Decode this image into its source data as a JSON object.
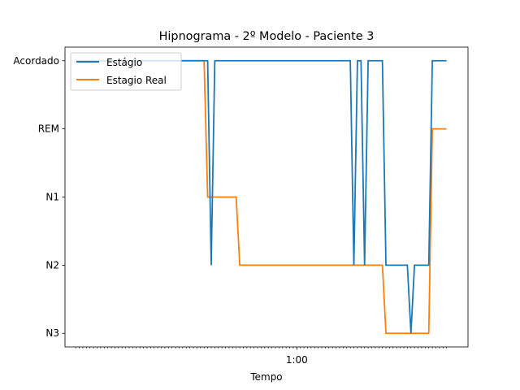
{
  "chart_data": {
    "type": "line",
    "title": "Hipnograma - 2º Modelo - Paciente 3",
    "xlabel": "Tempo",
    "ylabel": "",
    "y_categories": [
      "N3",
      "N2",
      "N1",
      "REM",
      "Acordado"
    ],
    "xlim": [
      -3,
      110
    ],
    "ylim": [
      -0.2,
      4.2
    ],
    "x_tick_labels": [
      {
        "x": 62,
        "label": "1:00"
      }
    ],
    "x_minor_tick_count": 104,
    "legend_position": "top-left",
    "grid": false,
    "series": [
      {
        "name": "Estágio",
        "color": "#1f77b4",
        "points": [
          [
            0,
            4
          ],
          [
            37,
            4
          ],
          [
            38,
            1
          ],
          [
            39,
            4
          ],
          [
            77,
            4
          ],
          [
            78,
            1
          ],
          [
            79,
            4
          ],
          [
            80,
            4
          ],
          [
            81,
            1
          ],
          [
            82,
            4
          ],
          [
            86,
            4
          ],
          [
            87,
            1
          ],
          [
            93,
            1
          ],
          [
            94,
            0
          ],
          [
            95,
            1
          ],
          [
            99,
            1
          ],
          [
            100,
            4
          ],
          [
            104,
            4
          ]
        ]
      },
      {
        "name": "Estagio Real",
        "color": "#ff7f0e",
        "points": [
          [
            0,
            4
          ],
          [
            36,
            4
          ],
          [
            37,
            2
          ],
          [
            45,
            2
          ],
          [
            46,
            1
          ],
          [
            86,
            1
          ],
          [
            87,
            0
          ],
          [
            99,
            0
          ],
          [
            100,
            3
          ],
          [
            104,
            3
          ]
        ]
      }
    ]
  }
}
